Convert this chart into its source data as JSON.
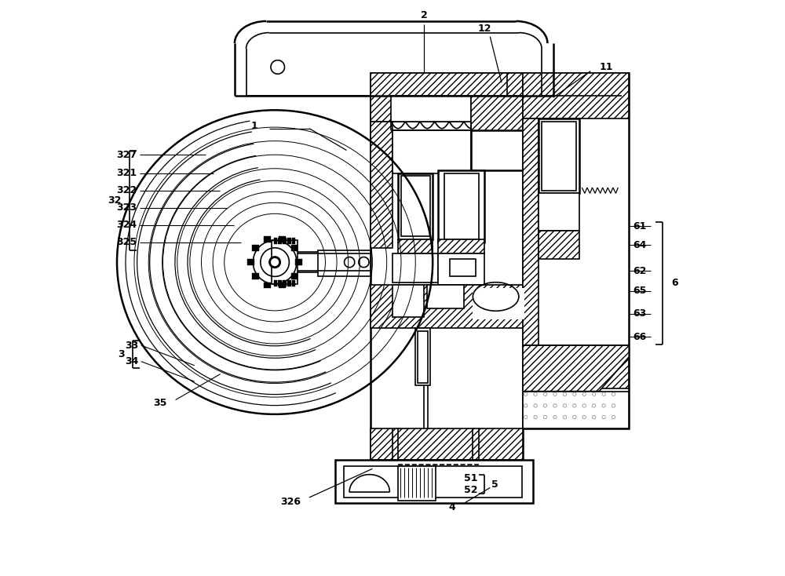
{
  "bg_color": "#ffffff",
  "line_color": "#000000",
  "fig_width": 10.0,
  "fig_height": 7.34,
  "lw": 1.2,
  "lw2": 1.8,
  "label_fs": 9,
  "labels_32": [
    [
      "327",
      0.268
    ],
    [
      "321",
      0.3
    ],
    [
      "322",
      0.33
    ],
    [
      "323",
      0.36
    ],
    [
      "324",
      0.39
    ],
    [
      "325",
      0.42
    ]
  ],
  "labels_3": [
    [
      "33",
      0.6
    ],
    [
      "34",
      0.628
    ]
  ],
  "right_labels": [
    [
      "61",
      0.392
    ],
    [
      "64",
      0.425
    ],
    [
      "62",
      0.47
    ],
    [
      "65",
      0.505
    ],
    [
      "63",
      0.545
    ],
    [
      "66",
      0.585
    ]
  ]
}
